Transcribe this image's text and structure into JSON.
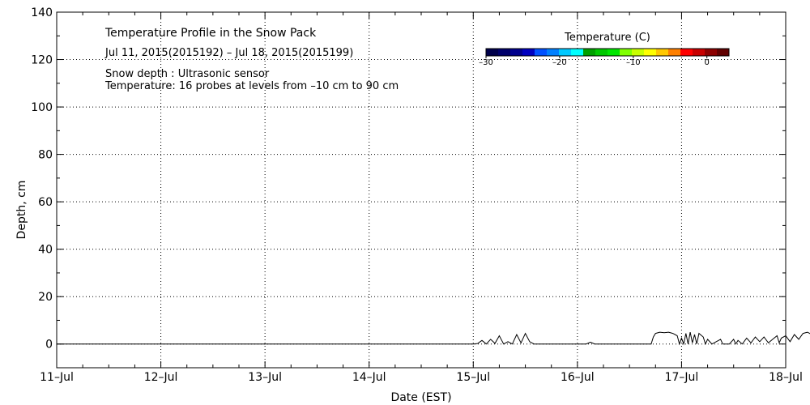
{
  "chart_data": {
    "type": "line",
    "title": "Temperature Profile in the Snow Pack",
    "subtitle": "Jul 11, 2015(2015192) – Jul 18, 2015(2015199)",
    "notes": [
      "Snow depth : Ultrasonic sensor",
      "Temperature: 16 probes at levels from –10 cm to 90 cm"
    ],
    "xlabel": "Date (EST)",
    "ylabel": "Depth, cm",
    "ylim": [
      -10,
      140
    ],
    "yticks": [
      0,
      20,
      40,
      60,
      80,
      100,
      120,
      140
    ],
    "xlim": [
      "2015-07-11",
      "2015-07-18"
    ],
    "xticks": [
      "11-Jul",
      "12-Jul",
      "13-Jul",
      "14-Jul",
      "15-Jul",
      "16-Jul",
      "17-Jul",
      "18-Jul"
    ],
    "grid": true,
    "colorbar": {
      "title": "Temperature (C)",
      "ticks": [
        -30,
        -20,
        -10,
        0
      ],
      "tick_labels": [
        "–30",
        "–20",
        "–10",
        "0"
      ],
      "range": [
        -30,
        3
      ],
      "colors": [
        "#00004a",
        "#00006a",
        "#00008c",
        "#0000c0",
        "#0050ff",
        "#0080ff",
        "#00c8ff",
        "#00ffff",
        "#00a000",
        "#00c800",
        "#00e600",
        "#80ff00",
        "#c8ff00",
        "#ffff00",
        "#ffc800",
        "#ff8000",
        "#ff0000",
        "#c80000",
        "#8c0000",
        "#600000"
      ]
    },
    "series": [
      {
        "name": "Snow depth",
        "color": "#000000",
        "points": [
          [
            "2015-07-11 00:00",
            0
          ],
          [
            "2015-07-15 00:00",
            0
          ],
          [
            "2015-07-15 01:00",
            0.2
          ],
          [
            "2015-07-15 02:00",
            1.5
          ],
          [
            "2015-07-15 03:00",
            0
          ],
          [
            "2015-07-15 04:00",
            2
          ],
          [
            "2015-07-15 05:00",
            0.3
          ],
          [
            "2015-07-15 06:00",
            3.5
          ],
          [
            "2015-07-15 07:00",
            0
          ],
          [
            "2015-07-15 08:00",
            1
          ],
          [
            "2015-07-15 09:00",
            0
          ],
          [
            "2015-07-15 10:00",
            4
          ],
          [
            "2015-07-15 11:00",
            0.5
          ],
          [
            "2015-07-15 12:00",
            4.5
          ],
          [
            "2015-07-15 13:00",
            1
          ],
          [
            "2015-07-15 14:00",
            0
          ],
          [
            "2015-07-16 02:00",
            0
          ],
          [
            "2015-07-16 03:00",
            0.8
          ],
          [
            "2015-07-16 04:00",
            0
          ],
          [
            "2015-07-16 17:00",
            0
          ],
          [
            "2015-07-16 17:30",
            3
          ],
          [
            "2015-07-16 18:00",
            4.5
          ],
          [
            "2015-07-16 19:00",
            5
          ],
          [
            "2015-07-16 20:00",
            4.8
          ],
          [
            "2015-07-16 21:00",
            5
          ],
          [
            "2015-07-16 22:00",
            4.5
          ],
          [
            "2015-07-16 23:00",
            3.5
          ],
          [
            "2015-07-16 23:30",
            0
          ],
          [
            "2015-07-17 00:00",
            2.5
          ],
          [
            "2015-07-17 00:30",
            0
          ],
          [
            "2015-07-17 01:00",
            4.5
          ],
          [
            "2015-07-17 01:30",
            0
          ],
          [
            "2015-07-17 02:00",
            5
          ],
          [
            "2015-07-17 02:30",
            0.5
          ],
          [
            "2015-07-17 03:00",
            4
          ],
          [
            "2015-07-17 03:30",
            0
          ],
          [
            "2015-07-17 04:00",
            4.5
          ],
          [
            "2015-07-17 05:00",
            3
          ],
          [
            "2015-07-17 05:30",
            0
          ],
          [
            "2015-07-17 06:00",
            2
          ],
          [
            "2015-07-17 07:00",
            0
          ],
          [
            "2015-07-17 08:00",
            1
          ],
          [
            "2015-07-17 09:00",
            2
          ],
          [
            "2015-07-17 09:30",
            0
          ],
          [
            "2015-07-17 11:00",
            0
          ],
          [
            "2015-07-17 12:00",
            2
          ],
          [
            "2015-07-17 12:30",
            0
          ],
          [
            "2015-07-17 13:00",
            1.5
          ],
          [
            "2015-07-17 14:00",
            0
          ],
          [
            "2015-07-17 15:00",
            2.5
          ],
          [
            "2015-07-17 16:00",
            0.5
          ],
          [
            "2015-07-17 17:00",
            3
          ],
          [
            "2015-07-17 18:00",
            1
          ],
          [
            "2015-07-17 19:00",
            3
          ],
          [
            "2015-07-17 20:00",
            0.5
          ],
          [
            "2015-07-17 21:00",
            2
          ],
          [
            "2015-07-17 22:00",
            3.5
          ],
          [
            "2015-07-17 22:30",
            0.5
          ],
          [
            "2015-07-17 23:00",
            2.5
          ],
          [
            "2015-07-18 00:00",
            3.5
          ],
          [
            "2015-07-18 01:00",
            1
          ],
          [
            "2015-07-18 02:00",
            4
          ],
          [
            "2015-07-18 03:00",
            2
          ],
          [
            "2015-07-18 04:00",
            4.5
          ],
          [
            "2015-07-18 05:00",
            5
          ],
          [
            "2015-07-18 06:00",
            4
          ],
          [
            "2015-07-18 07:00",
            5.5
          ],
          [
            "2015-07-18 08:00",
            4.8
          ]
        ]
      }
    ]
  }
}
